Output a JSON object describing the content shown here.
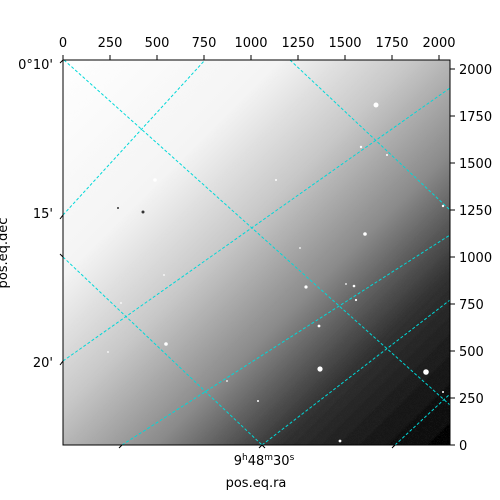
{
  "figure": {
    "xlabel": "pos.eq.ra",
    "ylabel": "pos.eq.dec",
    "top_ticks": [
      "0",
      "250",
      "500",
      "750",
      "1000",
      "1250",
      "1500",
      "1750",
      "2000"
    ],
    "right_ticks": [
      "0",
      "250",
      "500",
      "750",
      "1000",
      "1250",
      "1500",
      "1750",
      "2000"
    ],
    "dec_ticks": [
      "0°10'",
      "15'",
      "20'"
    ],
    "ra_tick": {
      "h": "9",
      "m": "48",
      "s": "30"
    },
    "grid_color": "#00d8d8",
    "sky_background": "grayscale gradient, bright upper-left to dark lower-right, with scattered stars"
  }
}
